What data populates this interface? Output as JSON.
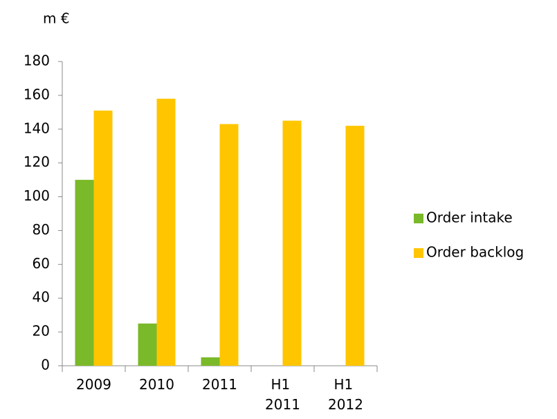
{
  "chart_data": {
    "type": "bar",
    "y_label": "m €",
    "categories": [
      "2009",
      "2010",
      "2011",
      "H1 2011",
      "H1 2012"
    ],
    "series": [
      {
        "name": "Order intake",
        "color": "#7ab929",
        "values": [
          110,
          25,
          5,
          0,
          0
        ]
      },
      {
        "name": "Order backlog",
        "color": "#ffc600",
        "values": [
          151,
          158,
          143,
          145,
          142
        ]
      }
    ],
    "ylim": [
      0,
      180
    ],
    "yticks": [
      0,
      20,
      40,
      60,
      80,
      100,
      120,
      140,
      160,
      180
    ],
    "legend": "right"
  }
}
